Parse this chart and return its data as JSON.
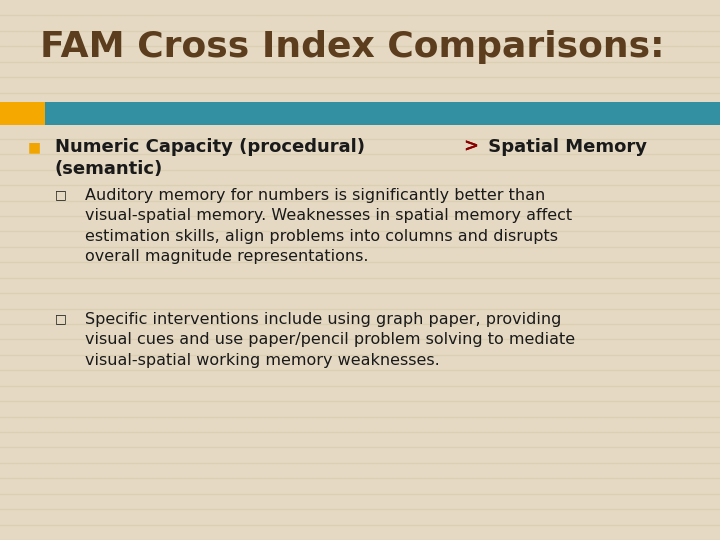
{
  "title": "FAM Cross Index Comparisons:",
  "title_color": "#5C3D1E",
  "title_fontsize": 26,
  "bg_color": "#E5D9C3",
  "stripe_color": "#D8CBAF",
  "bar_orange": "#F5A800",
  "bar_teal": "#3390A3",
  "bullet_color": "#F0A500",
  "gt_color": "#8B0000",
  "bullet1_color": "#1A1A1A",
  "bullet1_fontsize": 13,
  "sub_bullet_char": "□",
  "sub1_text": "Auditory memory for numbers is significantly better than\nvisual-spatial memory. Weaknesses in spatial memory affect\nestimation skills, align problems into columns and disrupts\noverall magnitude representations.",
  "sub2_text": "Specific interventions include using graph paper, providing\nvisual cues and use paper/pencil problem solving to mediate\nvisual-spatial working memory weaknesses.",
  "body_fontsize": 11.5,
  "body_color": "#1A1A1A"
}
